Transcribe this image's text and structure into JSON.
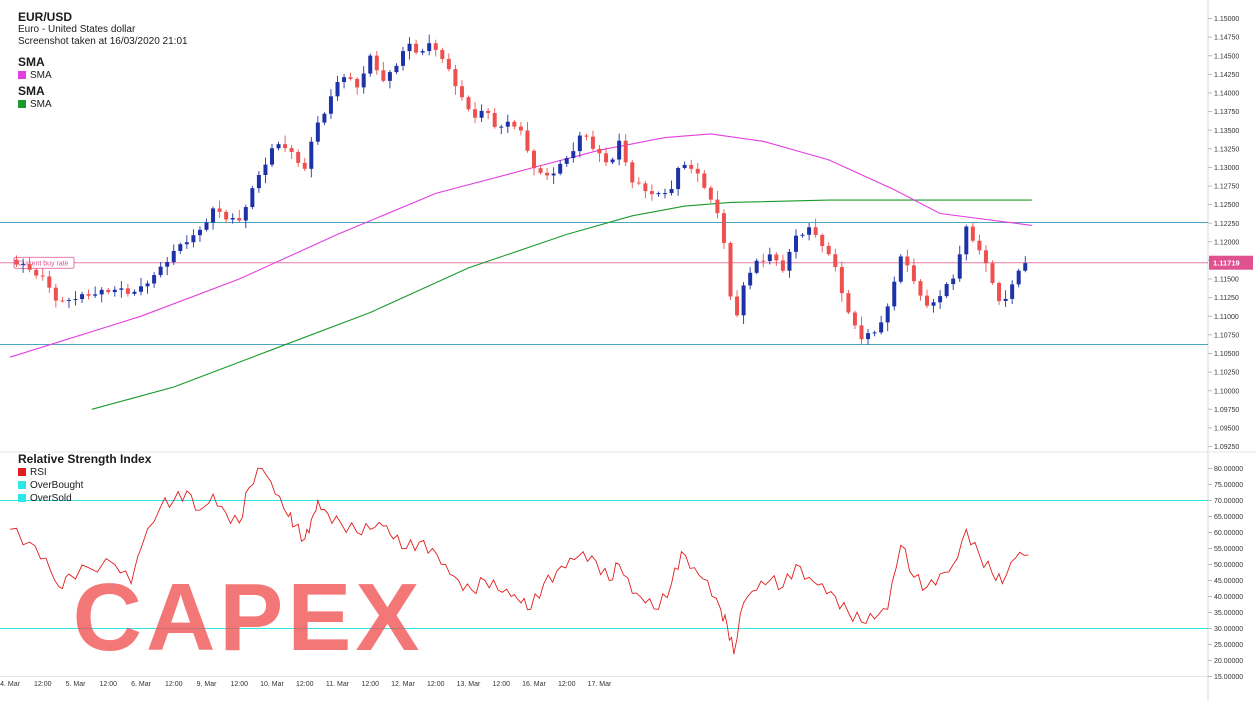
{
  "header": {
    "symbol": "EUR/USD",
    "name": "Euro - United States dollar",
    "screenshot_text": "Screenshot taken at 16/03/2020 21:01"
  },
  "legend_main": [
    {
      "title": "SMA",
      "label": "SMA",
      "color": "#e33ee0"
    },
    {
      "title": "SMA",
      "label": "SMA",
      "color": "#1c9a2b"
    }
  ],
  "rsi_panel": {
    "title": "Relative Strength Index",
    "items": [
      {
        "label": "RSI",
        "color": "#e11d1d"
      },
      {
        "label": "OverBought",
        "color": "#2fe6e6"
      },
      {
        "label": "OverSold",
        "color": "#2fe6e6"
      }
    ]
  },
  "current_rate": {
    "label": "Current buy rate",
    "value": "1.11719"
  },
  "watermark": "CAPEX",
  "colors": {
    "up": "#1e32a8",
    "down": "#ee5050",
    "sma_fast": "#e33ee0",
    "sma_slow": "#1c9a2b",
    "hline": "#4aa6c2",
    "current": "#e0528f",
    "rsi_line": "#e11d1d",
    "rsi_bounds": "#2fe6e6"
  },
  "chart_data": [
    {
      "type": "candlestick",
      "title": "EUR/USD",
      "x_ticks": [
        "4. Mar",
        "12:00",
        "5. Mar",
        "12:00",
        "6. Mar",
        "12:00",
        "9. Mar",
        "12:00",
        "10. Mar",
        "12:00",
        "11. Mar",
        "12:00",
        "12. Mar",
        "12:00",
        "13. Mar",
        "12:00",
        "16. Mar",
        "12:00",
        "17. Mar"
      ],
      "y_ticks": [
        "1.15000",
        "1.14750",
        "1.14500",
        "1.14250",
        "1.14000",
        "1.13750",
        "1.13500",
        "1.13250",
        "1.13000",
        "1.12750",
        "1.12500",
        "1.12250",
        "1.12000",
        "1.11750",
        "1.11500",
        "1.11250",
        "1.11000",
        "1.10750",
        "1.10500",
        "1.10250",
        "1.10000",
        "1.09750",
        "1.09500",
        "1.09250"
      ],
      "ylim": [
        1.0915,
        1.1508
      ],
      "close_path": [
        [
          0,
          1.1176
        ],
        [
          0.3,
          1.116
        ],
        [
          0.55,
          1.1145
        ],
        [
          0.75,
          1.1115
        ],
        [
          0.9,
          1.1125
        ],
        [
          1.2,
          1.1132
        ],
        [
          1.6,
          1.1135
        ],
        [
          1.85,
          1.1128
        ],
        [
          2.0,
          1.1135
        ],
        [
          2.3,
          1.1165
        ],
        [
          2.5,
          1.119
        ],
        [
          2.7,
          1.1205
        ],
        [
          2.9,
          1.1215
        ],
        [
          3.1,
          1.1242
        ],
        [
          3.3,
          1.123
        ],
        [
          3.5,
          1.1225
        ],
        [
          3.65,
          1.126
        ],
        [
          3.85,
          1.13
        ],
        [
          4.05,
          1.1335
        ],
        [
          4.25,
          1.133
        ],
        [
          4.35,
          1.131
        ],
        [
          4.5,
          1.13
        ],
        [
          4.6,
          1.133
        ],
        [
          4.7,
          1.1358
        ],
        [
          4.85,
          1.1378
        ],
        [
          5.05,
          1.1425
        ],
        [
          5.3,
          1.141
        ],
        [
          5.5,
          1.145
        ],
        [
          5.7,
          1.142
        ],
        [
          5.85,
          1.143
        ],
        [
          6.05,
          1.1465
        ],
        [
          6.25,
          1.145
        ],
        [
          6.45,
          1.1465
        ],
        [
          6.65,
          1.1438
        ],
        [
          6.85,
          1.1405
        ],
        [
          7.05,
          1.137
        ],
        [
          7.25,
          1.138
        ],
        [
          7.45,
          1.135
        ],
        [
          7.65,
          1.136
        ],
        [
          7.8,
          1.1345
        ],
        [
          7.95,
          1.1305
        ],
        [
          8.15,
          1.1285
        ],
        [
          8.35,
          1.13
        ],
        [
          8.55,
          1.132
        ],
        [
          8.75,
          1.135
        ],
        [
          8.95,
          1.132
        ],
        [
          9.15,
          1.13
        ],
        [
          9.3,
          1.133
        ],
        [
          9.5,
          1.128
        ],
        [
          9.7,
          1.127
        ],
        [
          9.9,
          1.1265
        ],
        [
          10.1,
          1.1275
        ],
        [
          10.25,
          1.131
        ],
        [
          10.45,
          1.1295
        ],
        [
          10.65,
          1.1265
        ],
        [
          10.85,
          1.1222
        ],
        [
          10.95,
          1.1175
        ],
        [
          11.05,
          1.1075
        ],
        [
          11.2,
          1.1145
        ],
        [
          11.4,
          1.1175
        ],
        [
          11.6,
          1.1185
        ],
        [
          11.8,
          1.1165
        ],
        [
          12.0,
          1.1205
        ],
        [
          12.2,
          1.1215
        ],
        [
          12.4,
          1.1195
        ],
        [
          12.6,
          1.1165
        ],
        [
          12.8,
          1.1105
        ],
        [
          13.0,
          1.1075
        ],
        [
          13.2,
          1.108
        ],
        [
          13.4,
          1.111
        ],
        [
          13.6,
          1.118
        ],
        [
          13.8,
          1.1145
        ],
        [
          14.0,
          1.111
        ],
        [
          14.2,
          1.113
        ],
        [
          14.4,
          1.1155
        ],
        [
          14.6,
          1.122
        ],
        [
          14.8,
          1.119
        ],
        [
          15.0,
          1.1145
        ],
        [
          15.15,
          1.1105
        ],
        [
          15.35,
          1.1155
        ],
        [
          15.55,
          1.1172
        ]
      ],
      "sma_fast": [
        [
          0,
          1.1045
        ],
        [
          2,
          1.11
        ],
        [
          3.5,
          1.115
        ],
        [
          5,
          1.121
        ],
        [
          6.5,
          1.1265
        ],
        [
          8,
          1.13
        ],
        [
          9,
          1.1323
        ],
        [
          10,
          1.134
        ],
        [
          10.7,
          1.1345
        ],
        [
          11.5,
          1.1335
        ],
        [
          12.5,
          1.131
        ],
        [
          13.5,
          1.127
        ],
        [
          14.2,
          1.1238
        ],
        [
          15.6,
          1.1222
        ]
      ],
      "sma_slow": [
        [
          1.25,
          1.0975
        ],
        [
          2.5,
          1.1005
        ],
        [
          4,
          1.1055
        ],
        [
          5.5,
          1.1105
        ],
        [
          7,
          1.1165
        ],
        [
          8.5,
          1.121
        ],
        [
          9.5,
          1.1235
        ],
        [
          10.3,
          1.1248
        ],
        [
          11,
          1.1253
        ],
        [
          12.5,
          1.1256
        ],
        [
          14,
          1.1256
        ],
        [
          15.6,
          1.1256
        ]
      ],
      "support_resistance": [
        1.1226,
        1.1062
      ],
      "current_price": 1.11719
    },
    {
      "type": "line",
      "title": "Relative Strength Index",
      "y_ticks": [
        "80.00000",
        "75.00000",
        "70.00000",
        "65.00000",
        "60.00000",
        "55.00000",
        "50.00000",
        "45.00000",
        "40.00000",
        "35.00000",
        "30.00000",
        "25.00000",
        "20.00000",
        "15.00000"
      ],
      "ylim": [
        15,
        81
      ],
      "overbought": 70,
      "oversold": 30,
      "x": [
        0,
        0.3,
        0.55,
        0.75,
        0.9,
        1.2,
        1.6,
        1.85,
        2.0,
        2.3,
        2.5,
        2.7,
        2.9,
        3.1,
        3.3,
        3.5,
        3.65,
        3.85,
        4.05,
        4.25,
        4.35,
        4.5,
        4.6,
        4.7,
        4.85,
        5.05,
        5.3,
        5.5,
        5.7,
        5.85,
        6.05,
        6.25,
        6.45,
        6.65,
        6.85,
        7.05,
        7.25,
        7.45,
        7.65,
        7.8,
        7.95,
        8.15,
        8.35,
        8.55,
        8.75,
        8.95,
        9.15,
        9.3,
        9.5,
        9.7,
        9.9,
        10.1,
        10.25,
        10.45,
        10.65,
        10.85,
        10.95,
        11.05,
        11.2,
        11.4,
        11.6,
        11.8,
        12.0,
        12.2,
        12.4,
        12.6,
        12.8,
        13.0,
        13.2,
        13.4,
        13.6,
        13.8,
        14.0,
        14.2,
        14.4,
        14.6,
        14.8,
        15.0,
        15.15,
        15.35,
        15.55
      ],
      "y": [
        61,
        57,
        52,
        43,
        47,
        49,
        50,
        44,
        55,
        68,
        70,
        73,
        67,
        72,
        66,
        63,
        74,
        80,
        72,
        65,
        62,
        58,
        64,
        70,
        66,
        63,
        60,
        61,
        62,
        58,
        55,
        57,
        55,
        50,
        45,
        42,
        45,
        42,
        40,
        38,
        36,
        44,
        48,
        52,
        54,
        51,
        45,
        50,
        41,
        38,
        36,
        44,
        54,
        49,
        45,
        36,
        31,
        22,
        38,
        42,
        45,
        43,
        50,
        46,
        44,
        40,
        35,
        32,
        33,
        36,
        56,
        46,
        43,
        47,
        50,
        61,
        53,
        47,
        44,
        52,
        53
      ]
    }
  ]
}
